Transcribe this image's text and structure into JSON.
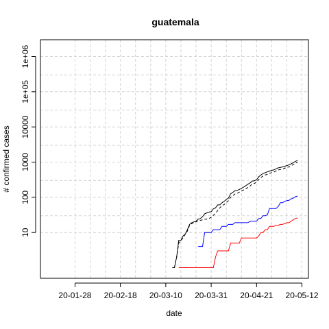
{
  "chart_data": {
    "type": "line",
    "title": "guatemala",
    "xlabel": "date",
    "ylabel": "# confirmed cases",
    "x_scale": "date",
    "y_scale": "log",
    "xlim": [
      "2020-01-12",
      "2020-05-15"
    ],
    "ylim": [
      0.5,
      3000000
    ],
    "x_ticks": [
      {
        "date": "2020-01-28",
        "label": "20-01-28"
      },
      {
        "date": "2020-02-18",
        "label": "20-02-18"
      },
      {
        "date": "2020-03-10",
        "label": "20-03-10"
      },
      {
        "date": "2020-03-31",
        "label": "20-03-31"
      },
      {
        "date": "2020-04-21",
        "label": "20-04-21"
      },
      {
        "date": "2020-05-12",
        "label": "20-05-12"
      }
    ],
    "x_grid_dates": [
      "2020-01-28",
      "2020-02-04",
      "2020-02-11",
      "2020-02-18",
      "2020-02-25",
      "2020-03-03",
      "2020-03-10",
      "2020-03-17",
      "2020-03-24",
      "2020-03-31",
      "2020-04-07",
      "2020-04-14",
      "2020-04-21",
      "2020-04-28",
      "2020-05-05",
      "2020-05-12"
    ],
    "y_ticks": [
      {
        "value": 10,
        "label": "10"
      },
      {
        "value": 100,
        "label": "100"
      },
      {
        "value": 1000,
        "label": "1000"
      },
      {
        "value": 10000,
        "label": "10000"
      },
      {
        "value": 100000,
        "label": "1e+05"
      },
      {
        "value": 1000000,
        "label": "1e+06"
      }
    ],
    "y_grid_values": [
      10,
      30,
      100,
      300,
      1000,
      3000,
      10000,
      30000,
      100000,
      300000,
      1000000,
      3000000
    ],
    "grid": true,
    "series": [
      {
        "color": "#000000",
        "dash": "solid",
        "points": [
          [
            "2020-03-13",
            1
          ],
          [
            "2020-03-14",
            1
          ],
          [
            "2020-03-15",
            2
          ],
          [
            "2020-03-16",
            6
          ],
          [
            "2020-03-17",
            6
          ],
          [
            "2020-03-18",
            8
          ],
          [
            "2020-03-19",
            9
          ],
          [
            "2020-03-20",
            12
          ],
          [
            "2020-03-21",
            17
          ],
          [
            "2020-03-22",
            19
          ],
          [
            "2020-03-23",
            20
          ],
          [
            "2020-03-24",
            21
          ],
          [
            "2020-03-25",
            24
          ],
          [
            "2020-03-26",
            25
          ],
          [
            "2020-03-27",
            28
          ],
          [
            "2020-03-28",
            34
          ],
          [
            "2020-03-29",
            36
          ],
          [
            "2020-03-30",
            38
          ],
          [
            "2020-03-31",
            39
          ],
          [
            "2020-04-01",
            47
          ],
          [
            "2020-04-02",
            50
          ],
          [
            "2020-04-03",
            61
          ],
          [
            "2020-04-04",
            61
          ],
          [
            "2020-04-05",
            70
          ],
          [
            "2020-04-06",
            77
          ],
          [
            "2020-04-07",
            87
          ],
          [
            "2020-04-08",
            95
          ],
          [
            "2020-04-09",
            126
          ],
          [
            "2020-04-10",
            137
          ],
          [
            "2020-04-11",
            155
          ],
          [
            "2020-04-12",
            156
          ],
          [
            "2020-04-13",
            167
          ],
          [
            "2020-04-14",
            180
          ],
          [
            "2020-04-15",
            196
          ],
          [
            "2020-04-16",
            214
          ],
          [
            "2020-04-17",
            235
          ],
          [
            "2020-04-18",
            257
          ],
          [
            "2020-04-19",
            289
          ],
          [
            "2020-04-20",
            294
          ],
          [
            "2020-04-21",
            316
          ],
          [
            "2020-04-22",
            384
          ],
          [
            "2020-04-23",
            430
          ],
          [
            "2020-04-24",
            473
          ],
          [
            "2020-04-25",
            500
          ],
          [
            "2020-04-26",
            530
          ],
          [
            "2020-04-27",
            557
          ],
          [
            "2020-04-28",
            585
          ],
          [
            "2020-04-29",
            599
          ],
          [
            "2020-04-30",
            644
          ],
          [
            "2020-05-01",
            688
          ],
          [
            "2020-05-02",
            703
          ],
          [
            "2020-05-03",
            730
          ],
          [
            "2020-05-04",
            763
          ],
          [
            "2020-05-05",
            798
          ],
          [
            "2020-05-06",
            832
          ],
          [
            "2020-05-07",
            900
          ],
          [
            "2020-05-08",
            967
          ],
          [
            "2020-05-09",
            1052
          ],
          [
            "2020-05-10",
            1114
          ]
        ]
      },
      {
        "color": "#000000",
        "dash": "dashed",
        "points": [
          [
            "2020-03-14",
            1
          ],
          [
            "2020-03-15",
            2
          ],
          [
            "2020-03-16",
            5
          ],
          [
            "2020-03-17",
            6
          ],
          [
            "2020-03-18",
            7
          ],
          [
            "2020-03-19",
            9
          ],
          [
            "2020-03-20",
            11
          ],
          [
            "2020-03-21",
            16
          ],
          [
            "2020-03-22",
            18
          ],
          [
            "2020-03-23",
            19
          ],
          [
            "2020-03-24",
            20
          ],
          [
            "2020-03-25",
            22
          ],
          [
            "2020-03-26",
            22
          ],
          [
            "2020-03-27",
            23
          ],
          [
            "2020-03-28",
            24
          ],
          [
            "2020-03-29",
            24
          ],
          [
            "2020-03-30",
            25
          ],
          [
            "2020-03-31",
            27
          ],
          [
            "2020-04-01",
            31
          ],
          [
            "2020-04-02",
            35
          ],
          [
            "2020-04-03",
            42
          ],
          [
            "2020-04-04",
            50
          ],
          [
            "2020-04-05",
            58
          ],
          [
            "2020-04-06",
            62
          ],
          [
            "2020-04-07",
            71
          ],
          [
            "2020-04-08",
            80
          ],
          [
            "2020-04-09",
            100
          ],
          [
            "2020-04-10",
            110
          ],
          [
            "2020-04-11",
            124
          ],
          [
            "2020-04-12",
            130
          ],
          [
            "2020-04-13",
            140
          ],
          [
            "2020-04-14",
            150
          ],
          [
            "2020-04-15",
            162
          ],
          [
            "2020-04-16",
            175
          ],
          [
            "2020-04-17",
            190
          ],
          [
            "2020-04-18",
            210
          ],
          [
            "2020-04-19",
            240
          ],
          [
            "2020-04-20",
            248
          ],
          [
            "2020-04-21",
            270
          ],
          [
            "2020-04-22",
            320
          ],
          [
            "2020-04-23",
            365
          ],
          [
            "2020-04-24",
            405
          ],
          [
            "2020-04-25",
            430
          ],
          [
            "2020-04-26",
            455
          ],
          [
            "2020-04-27",
            480
          ],
          [
            "2020-04-28",
            505
          ],
          [
            "2020-04-29",
            520
          ],
          [
            "2020-04-30",
            560
          ],
          [
            "2020-05-01",
            600
          ],
          [
            "2020-05-02",
            615
          ],
          [
            "2020-05-03",
            640
          ],
          [
            "2020-05-04",
            670
          ],
          [
            "2020-05-05",
            700
          ],
          [
            "2020-05-06",
            730
          ],
          [
            "2020-05-07",
            790
          ],
          [
            "2020-05-08",
            850
          ],
          [
            "2020-05-09",
            930
          ],
          [
            "2020-05-10",
            990
          ]
        ]
      },
      {
        "color": "#0000ff",
        "dash": "solid",
        "points": [
          [
            "2020-03-25",
            4
          ],
          [
            "2020-03-26",
            4
          ],
          [
            "2020-03-27",
            4
          ],
          [
            "2020-03-28",
            10
          ],
          [
            "2020-03-29",
            10
          ],
          [
            "2020-03-30",
            10
          ],
          [
            "2020-03-31",
            10
          ],
          [
            "2020-04-01",
            12
          ],
          [
            "2020-04-02",
            12
          ],
          [
            "2020-04-03",
            12
          ],
          [
            "2020-04-04",
            12
          ],
          [
            "2020-04-05",
            15
          ],
          [
            "2020-04-06",
            15
          ],
          [
            "2020-04-07",
            15
          ],
          [
            "2020-04-08",
            17
          ],
          [
            "2020-04-09",
            17
          ],
          [
            "2020-04-10",
            17
          ],
          [
            "2020-04-11",
            19
          ],
          [
            "2020-04-12",
            19
          ],
          [
            "2020-04-13",
            19
          ],
          [
            "2020-04-14",
            19
          ],
          [
            "2020-04-15",
            19
          ],
          [
            "2020-04-16",
            19
          ],
          [
            "2020-04-17",
            19
          ],
          [
            "2020-04-18",
            21
          ],
          [
            "2020-04-19",
            21
          ],
          [
            "2020-04-20",
            21
          ],
          [
            "2020-04-21",
            21
          ],
          [
            "2020-04-22",
            25
          ],
          [
            "2020-04-23",
            25
          ],
          [
            "2020-04-24",
            30
          ],
          [
            "2020-04-25",
            30
          ],
          [
            "2020-04-26",
            32
          ],
          [
            "2020-04-27",
            48
          ],
          [
            "2020-04-28",
            48
          ],
          [
            "2020-04-29",
            48
          ],
          [
            "2020-04-30",
            48
          ],
          [
            "2020-05-01",
            55
          ],
          [
            "2020-05-02",
            70
          ],
          [
            "2020-05-03",
            70
          ],
          [
            "2020-05-04",
            77
          ],
          [
            "2020-05-05",
            80
          ],
          [
            "2020-05-06",
            82
          ],
          [
            "2020-05-07",
            90
          ],
          [
            "2020-05-08",
            95
          ],
          [
            "2020-05-09",
            105
          ],
          [
            "2020-05-10",
            108
          ]
        ]
      },
      {
        "color": "#ff0000",
        "dash": "solid",
        "points": [
          [
            "2020-03-16",
            1
          ],
          [
            "2020-03-17",
            1
          ],
          [
            "2020-03-20",
            1
          ],
          [
            "2020-03-25",
            1
          ],
          [
            "2020-03-31",
            1
          ],
          [
            "2020-04-01",
            1
          ],
          [
            "2020-04-02",
            2
          ],
          [
            "2020-04-03",
            3
          ],
          [
            "2020-04-04",
            3
          ],
          [
            "2020-04-05",
            3
          ],
          [
            "2020-04-06",
            3
          ],
          [
            "2020-04-07",
            3
          ],
          [
            "2020-04-08",
            3
          ],
          [
            "2020-04-09",
            5
          ],
          [
            "2020-04-10",
            5
          ],
          [
            "2020-04-11",
            5
          ],
          [
            "2020-04-12",
            5
          ],
          [
            "2020-04-13",
            5
          ],
          [
            "2020-04-14",
            7
          ],
          [
            "2020-04-15",
            7
          ],
          [
            "2020-04-16",
            7
          ],
          [
            "2020-04-17",
            7
          ],
          [
            "2020-04-18",
            7
          ],
          [
            "2020-04-19",
            7
          ],
          [
            "2020-04-20",
            7
          ],
          [
            "2020-04-21",
            7
          ],
          [
            "2020-04-22",
            8
          ],
          [
            "2020-04-23",
            10
          ],
          [
            "2020-04-24",
            10
          ],
          [
            "2020-04-25",
            12
          ],
          [
            "2020-04-26",
            12
          ],
          [
            "2020-04-27",
            15
          ],
          [
            "2020-04-28",
            15
          ],
          [
            "2020-04-29",
            15
          ],
          [
            "2020-04-30",
            16
          ],
          [
            "2020-05-01",
            16
          ],
          [
            "2020-05-02",
            17
          ],
          [
            "2020-05-03",
            17
          ],
          [
            "2020-05-04",
            18
          ],
          [
            "2020-05-05",
            19
          ],
          [
            "2020-05-06",
            19
          ],
          [
            "2020-05-07",
            21
          ],
          [
            "2020-05-08",
            23
          ],
          [
            "2020-05-09",
            25
          ],
          [
            "2020-05-10",
            26
          ]
        ]
      }
    ]
  }
}
